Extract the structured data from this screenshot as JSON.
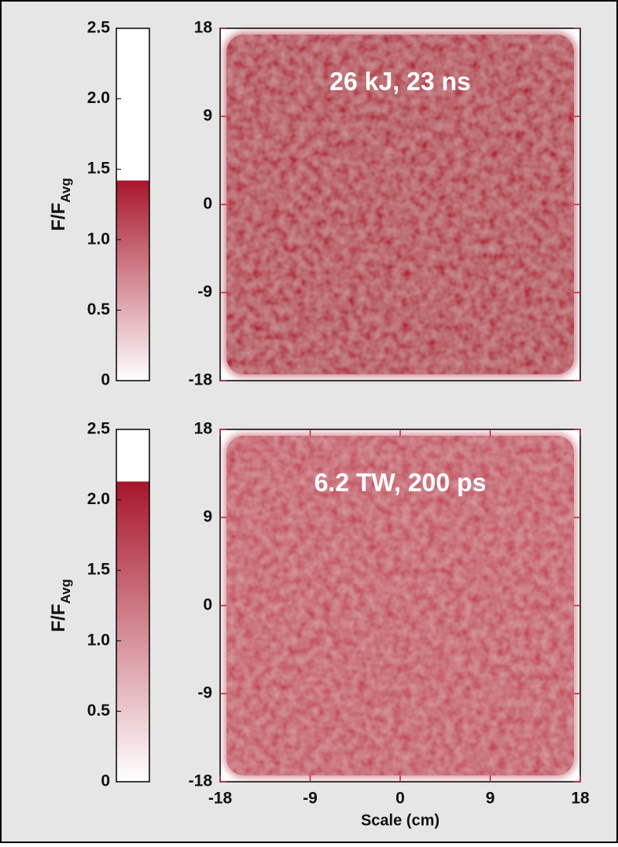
{
  "chart_data": [
    {
      "type": "colorbar",
      "ylabel": "F/F",
      "ylabel_sub": "Avg",
      "ylim": [
        0,
        2.5
      ],
      "yticks": [
        0,
        0.5,
        {
          "value": 1,
          "label": "1.0"
        },
        1.5,
        {
          "value": 2,
          "label": "2.0"
        },
        2.5
      ],
      "values": [
        1.42
      ],
      "color": "#a8162b"
    },
    {
      "type": "heatmap",
      "annotation": "26 kJ, 23 ns",
      "ylim": [
        -18,
        18
      ],
      "yticks": [
        -18,
        -9,
        0,
        9,
        18
      ],
      "color": "#b02a3c"
    },
    {
      "type": "colorbar",
      "ylabel": "F/F",
      "ylabel_sub": "Avg",
      "ylim": [
        0,
        2.5
      ],
      "yticks": [
        0,
        0.5,
        {
          "value": 1,
          "label": "1.0"
        },
        1.5,
        {
          "value": 2,
          "label": "2.0"
        },
        2.5
      ],
      "values": [
        2.13
      ],
      "color": "#a8162b"
    },
    {
      "type": "heatmap",
      "annotation": "6.2 TW, 200 ps",
      "xlabel": "Scale (cm)",
      "xlim": [
        -18,
        18
      ],
      "ylim": [
        -18,
        18
      ],
      "xticks": [
        -18,
        -9,
        0,
        9,
        18
      ],
      "yticks": [
        -18,
        -9,
        0,
        9,
        18
      ],
      "color": "#c24a5a"
    }
  ]
}
